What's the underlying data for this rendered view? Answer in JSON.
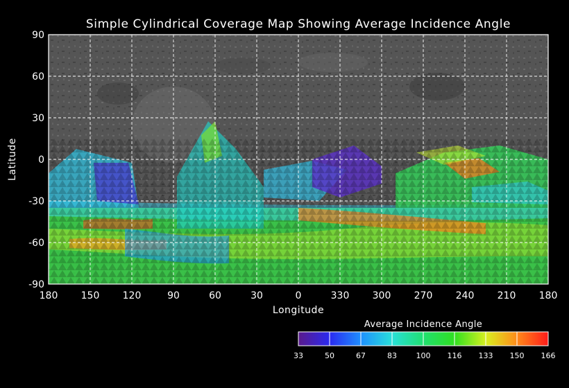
{
  "map": {
    "title": "Simple Cylindrical Coverage Map Showing Average Incidence Angle",
    "x_axis_label": "Longitude",
    "y_axis_label": "Latitude",
    "longitude_ticks": [
      "180",
      "150",
      "120",
      "90",
      "60",
      "30",
      "0",
      "330",
      "300",
      "270",
      "240",
      "210",
      "180"
    ],
    "latitude_ticks": [
      "90",
      "60",
      "30",
      "0",
      "-30",
      "-60",
      "-90"
    ],
    "latitude_values": [
      90,
      60,
      30,
      0,
      -30,
      -60,
      -90
    ],
    "grid": true,
    "grid_style": "dashed"
  },
  "legend": {
    "title": "Average Incidence Angle",
    "tick_labels": [
      "33",
      "50",
      "67",
      "83",
      "100",
      "116",
      "133",
      "150",
      "166"
    ],
    "colors": [
      "#5a1a8c",
      "#2a2af0",
      "#1e90ff",
      "#28e0d8",
      "#20e070",
      "#30e020",
      "#d8f020",
      "#ff8a1a",
      "#ff1a1a"
    ]
  },
  "chart_data": {
    "type": "heatmap",
    "title": "Simple Cylindrical Coverage Map Showing Average Incidence Angle",
    "xlabel": "Longitude",
    "ylabel": "Latitude",
    "xticks": [
      "180",
      "150",
      "120",
      "90",
      "60",
      "30",
      "0",
      "330",
      "300",
      "270",
      "240",
      "210",
      "180"
    ],
    "yticks": [
      90,
      60,
      30,
      0,
      -30,
      -60,
      -90
    ],
    "ylim": [
      -90,
      90
    ],
    "colorbar": {
      "label": "Average Incidence Angle",
      "range": [
        33,
        166
      ],
      "ticks": [
        33,
        50,
        67,
        83,
        100,
        116,
        133,
        150,
        166
      ]
    }
  }
}
